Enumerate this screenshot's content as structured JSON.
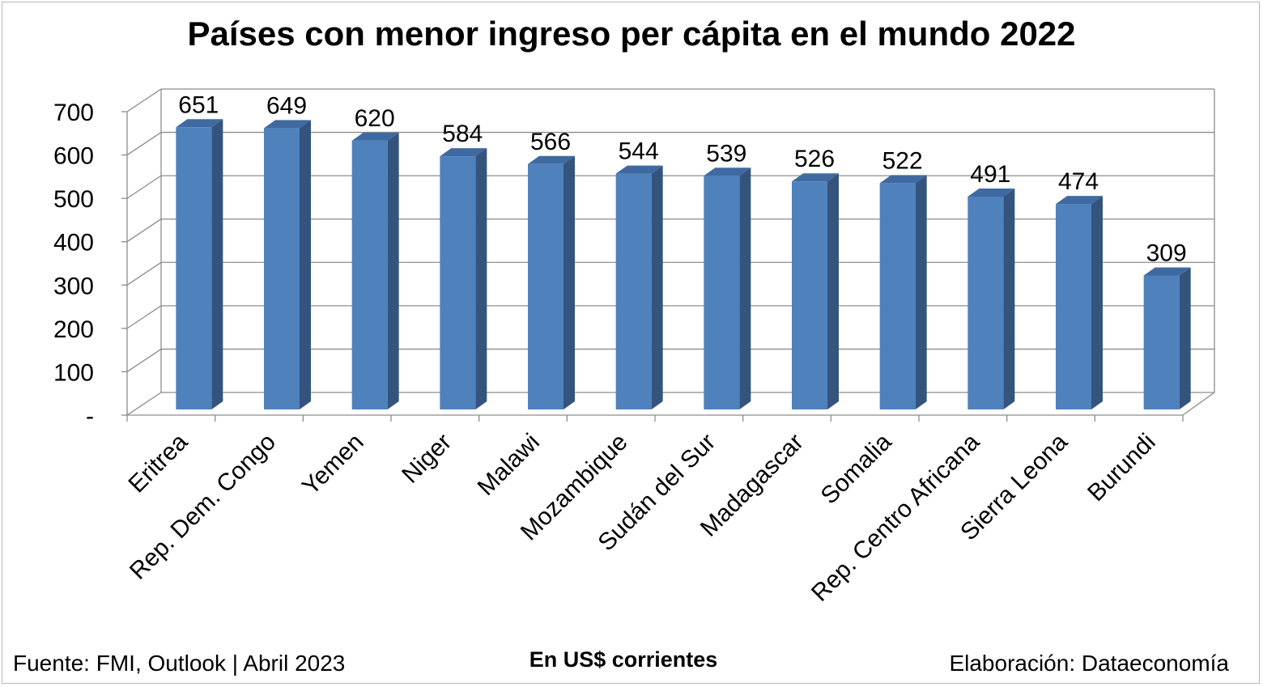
{
  "chart_data": {
    "type": "bar",
    "title": "Países con menor ingreso per cápita en el mundo 2022",
    "categories": [
      "Eritrea",
      "Rep. Dem. Congo",
      "Yemen",
      "Niger",
      "Malawi",
      "Mozambique",
      "Sudán del Sur",
      "Madagascar",
      "Somalia",
      "Rep. Centro Africana",
      "Sierra Leona",
      "Burundi"
    ],
    "series": [
      {
        "values": [
          651,
          649,
          620,
          584,
          566,
          544,
          539,
          526,
          522,
          491,
          474,
          309
        ]
      }
    ],
    "ylim": [
      0,
      700
    ],
    "yticks": [
      "-",
      "100",
      "200",
      "300",
      "400",
      "500",
      "600",
      "700"
    ],
    "xlabel": "",
    "ylabel": "",
    "grid": true,
    "legend": "none",
    "bar_color": "#4f81bd",
    "bar_side_color": "#34547e",
    "bar_top_color": "#3f6aa1"
  },
  "footer": {
    "source": "Fuente: FMI, Outlook | Abril 2023",
    "units": "En US$ corrientes",
    "author": "Elaboración: Dataeconomía"
  }
}
